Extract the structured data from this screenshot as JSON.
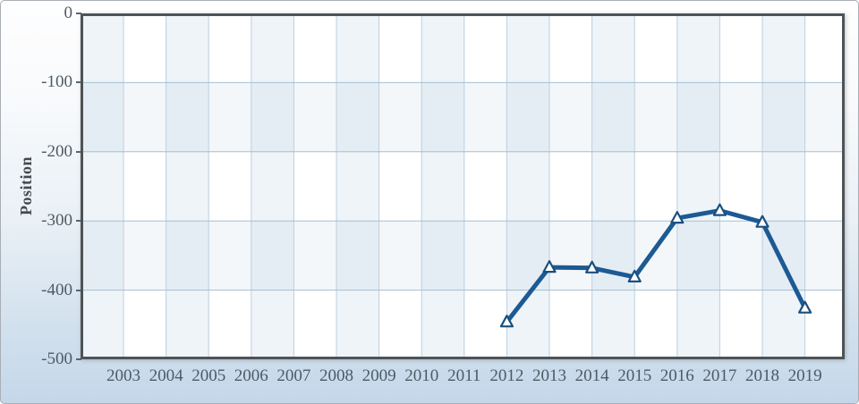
{
  "chart_data": {
    "type": "line",
    "title": "",
    "xlabel": "",
    "ylabel": "Position",
    "x": [
      2003,
      2004,
      2005,
      2006,
      2007,
      2008,
      2009,
      2010,
      2011,
      2012,
      2013,
      2014,
      2015,
      2016,
      2017,
      2018,
      2019
    ],
    "series": [
      {
        "name": "Position",
        "marker": "triangle-up",
        "values": [
          null,
          null,
          null,
          null,
          null,
          null,
          null,
          null,
          null,
          -446,
          -367,
          -368,
          -381,
          -296,
          -285,
          -302,
          -426
        ]
      }
    ],
    "ylim": [
      -500,
      0
    ],
    "yticks": [
      0,
      -100,
      -200,
      -300,
      -400,
      -500
    ],
    "grid": "checkerboard",
    "legend": "none"
  },
  "style": {
    "line_color": "#1d5a94",
    "marker_fill": "#ffffff",
    "marker_stroke": "#1a4f80",
    "cell_light": "#eef4f8",
    "cell_white": "#ffffff",
    "cell_dark": "#e5edf4",
    "cell_mid": "#f3f7fa",
    "grid_vertical": "#bccfde",
    "grid_horizontal": "#a3c0d2",
    "plot_border": "#4e5356",
    "tick_text_color": "#4e5a64",
    "axis_title_color": "#45494e",
    "page_border": "#a8aeb5",
    "background_top": "#fefefe",
    "background_bottom": "#c4d7e9"
  }
}
